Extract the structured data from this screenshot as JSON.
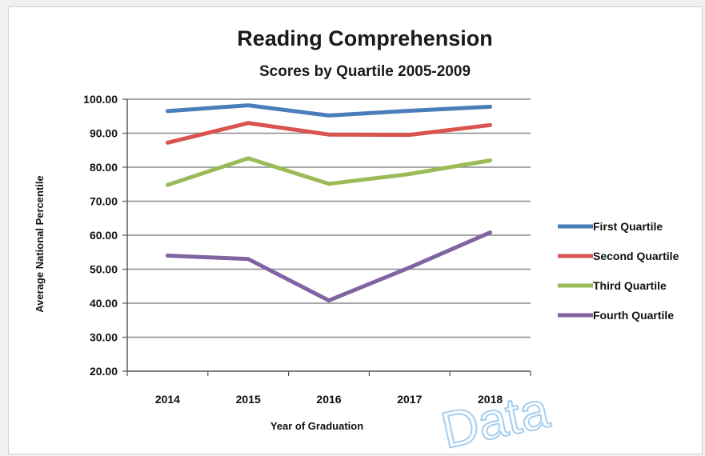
{
  "chart_data": {
    "type": "line",
    "title": "Reading Comprehension",
    "subtitle": "Scores by Quartile 2005-2009",
    "xlabel": "Year of Graduation",
    "ylabel": "Average National Percentile",
    "categories": [
      "2014",
      "2015",
      "2016",
      "2017",
      "2018"
    ],
    "ylim": [
      20,
      100
    ],
    "yticks": [
      "20.00",
      "30.00",
      "40.00",
      "50.00",
      "60.00",
      "70.00",
      "80.00",
      "90.00",
      "100.00"
    ],
    "grid": true,
    "legend_position": "right",
    "series": [
      {
        "name": "First Quartile",
        "color": "#4a7ebb",
        "values": [
          96.5,
          98.2,
          95.2,
          96.6,
          97.8
        ]
      },
      {
        "name": "Second Quartile",
        "color": "#d9534f",
        "values": [
          87.2,
          93.0,
          89.6,
          89.5,
          92.4
        ]
      },
      {
        "name": "Third Quartile",
        "color": "#9bbb59",
        "values": [
          74.8,
          82.6,
          75.1,
          78.0,
          82.0
        ]
      },
      {
        "name": "Fourth Quartile",
        "color": "#8064a2",
        "values": [
          54.0,
          53.0,
          40.8,
          50.5,
          60.8
        ]
      }
    ]
  },
  "watermark": "Data"
}
